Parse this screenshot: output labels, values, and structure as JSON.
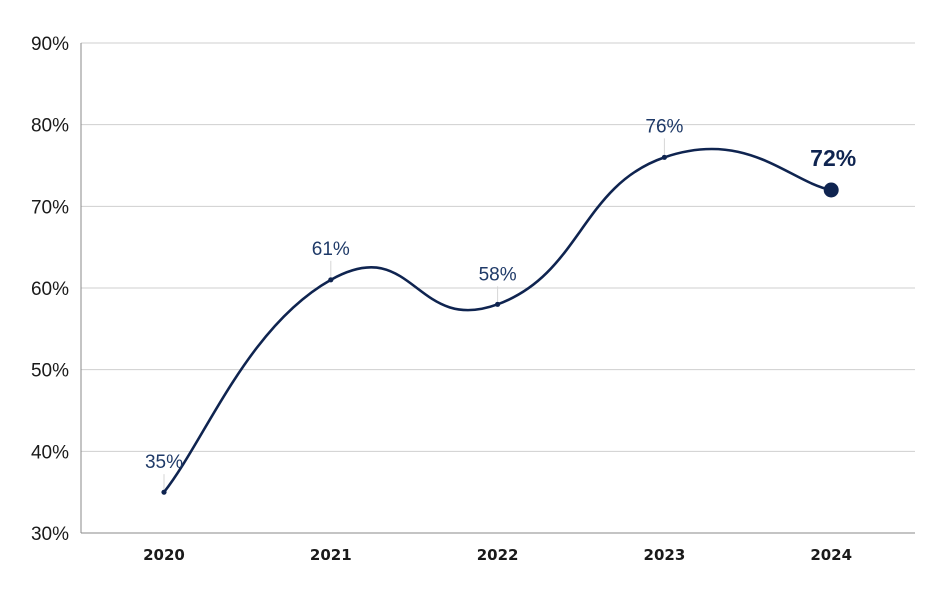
{
  "colors": {
    "line": "#0f2450",
    "label": "#1f3a68",
    "grid": "#cfcfcf",
    "axis": "#8a8a8a",
    "leader": "#d6d6d6"
  },
  "chart_data": {
    "type": "line",
    "title": "",
    "xlabel": "",
    "ylabel": "",
    "categories": [
      "2020",
      "2021",
      "2022",
      "2023",
      "2024"
    ],
    "series": [
      {
        "values": [
          35,
          61,
          58,
          76,
          72
        ],
        "data_labels": [
          "35%",
          "61%",
          "58%",
          "76%",
          "72%"
        ],
        "highlight_last": true
      }
    ],
    "ylim": [
      30,
      90
    ],
    "y_ticks": [
      30,
      40,
      50,
      60,
      70,
      80,
      90
    ],
    "y_tick_labels": [
      "30%",
      "40%",
      "50%",
      "60%",
      "70%",
      "80%",
      "90%"
    ],
    "grid": true,
    "smooth": true,
    "legend": "none"
  }
}
